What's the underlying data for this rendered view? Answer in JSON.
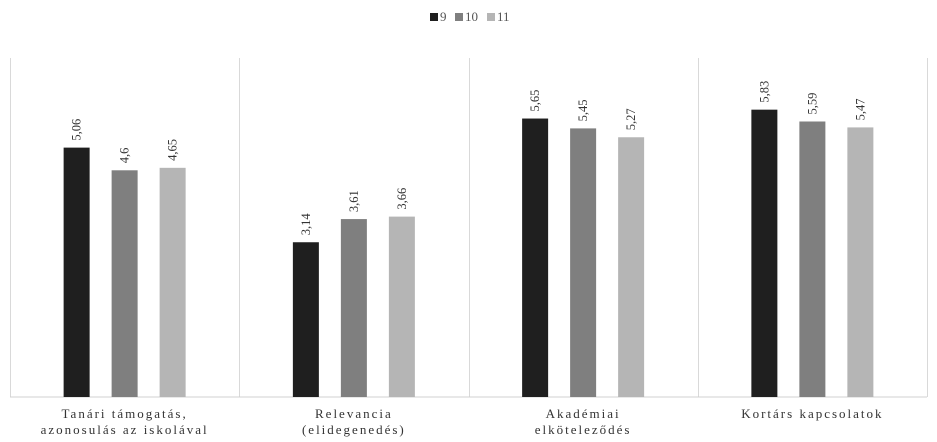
{
  "chart_data": {
    "type": "bar",
    "categories": [
      [
        "Tanári támogatás,",
        "azonosulás az iskolával"
      ],
      [
        "Relevancia",
        "(elidegenedés)"
      ],
      [
        "Akadémiai",
        "elköteleződés"
      ],
      [
        "Kortárs kapcsolatok"
      ]
    ],
    "series": [
      {
        "name": "9",
        "color": "#1f1f1f",
        "values": [
          5.06,
          3.14,
          5.65,
          5.83
        ],
        "labels": [
          "5,06",
          "3,14",
          "5,65",
          "5,83"
        ]
      },
      {
        "name": "10",
        "color": "#7f7f7f",
        "values": [
          4.6,
          3.61,
          5.45,
          5.59
        ],
        "labels": [
          "4,6",
          "3,61",
          "5,45",
          "5,59"
        ]
      },
      {
        "name": "11",
        "color": "#b5b5b5",
        "values": [
          4.65,
          3.66,
          5.27,
          5.47
        ],
        "labels": [
          "4,65",
          "3,66",
          "5,27",
          "5,47"
        ]
      }
    ],
    "title": "",
    "xlabel": "",
    "ylabel": "",
    "ylim": [
      0,
      7
    ],
    "grid": "vertical category separators",
    "legend_position": "top-center",
    "data_labels_rotated": true
  }
}
